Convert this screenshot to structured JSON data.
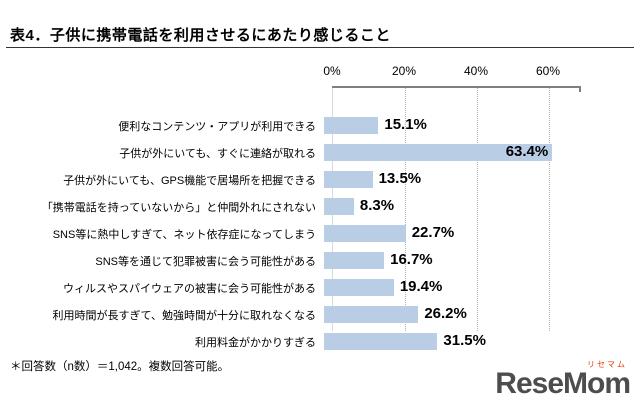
{
  "page": {
    "title": "表4．子供に携帯電話を利用させるにあたり感じること",
    "footnote": "＊回答数（n数）＝1,042。複数回答可能。"
  },
  "logo": {
    "text": "ReseMom",
    "sub": "リセマム",
    "text_color": "#4d4d4d",
    "accent_color": "#e8380d"
  },
  "chart_data": {
    "type": "bar",
    "orientation": "horizontal",
    "title": "表4．子供に携帯電話を利用させるにあたり感じること",
    "categories": [
      "便利なコンテンツ・アプリが利用できる",
      "子供が外にいても、すぐに連絡が取れる",
      "子供が外にいても、GPS機能で居場所を把握できる",
      "「携帯電話を持っていないから」と仲間外れにされない",
      "SNS等に熱中しすぎて、ネット依存症になってしまう",
      "SNS等を通じて犯罪被害に会う可能性がある",
      "ウィルスやスパイウェアの被害に会う可能性がある",
      "利用時間が長すぎて、勉強時間が十分に取れなくなる",
      "利用料金がかかりすぎる"
    ],
    "values": [
      15.1,
      63.4,
      13.5,
      8.3,
      22.7,
      16.7,
      19.4,
      26.2,
      31.5
    ],
    "value_labels": [
      "15.1%",
      "63.4%",
      "13.5%",
      "8.3%",
      "22.7%",
      "16.7%",
      "19.4%",
      "26.2%",
      "31.5%"
    ],
    "xlim": [
      0,
      68.9
    ],
    "x_ticks": [
      "0%",
      "20%",
      "40%",
      "60%"
    ],
    "x_tick_values": [
      0,
      20,
      40,
      60
    ],
    "bar_color": "#b9cde5",
    "grid": "vertical-dotted",
    "legend": "none",
    "n": "1,042"
  }
}
